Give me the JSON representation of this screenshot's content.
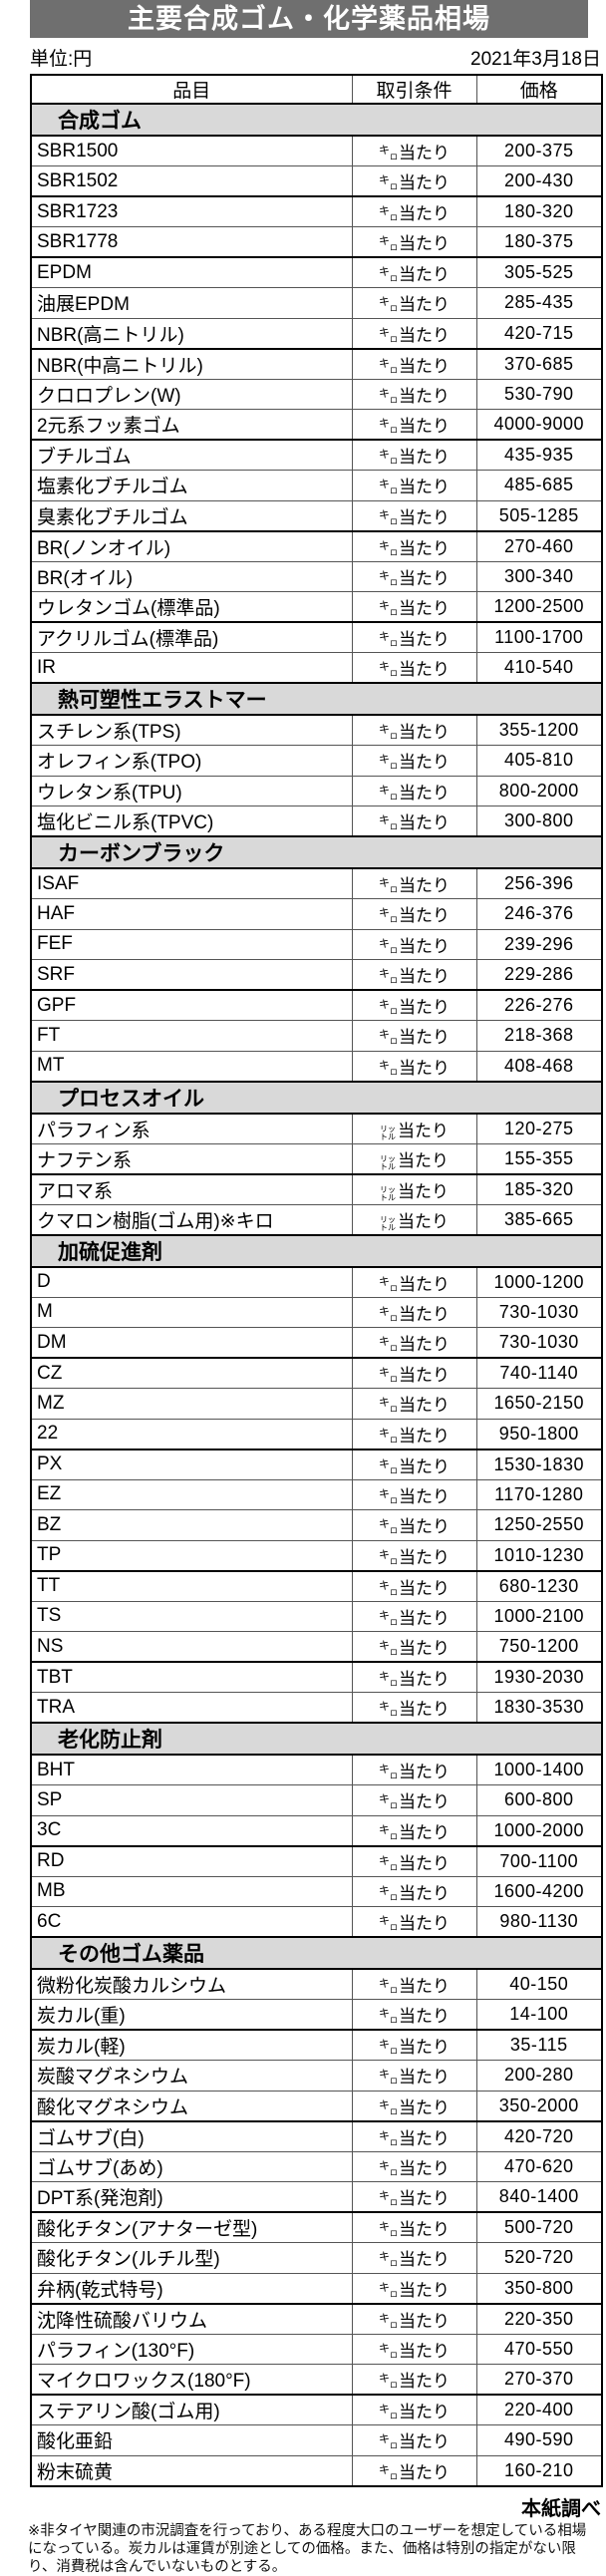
{
  "title": "主要合成ゴム・化学薬品相場",
  "unit_label": "単位:円",
  "date": "2021年3月18日",
  "columns": [
    "品目",
    "取引条件",
    "価格"
  ],
  "source": "本紙調べ",
  "footnote": "※非タイヤ関連の市況調査を行っており、ある程度大口のユーザーを想定している相場になっている。炭カルは運賃が別途としての価格。また、価格は特別の指定がない限り、消費税は含んでいないものとする。",
  "units": {
    "kilo": {
      "label": "㌔当たり",
      "top": "キ",
      "sub": "ロ",
      "suffix": "当たり"
    },
    "liter": {
      "label": "㍑当たり",
      "line1": "リッ",
      "line2": "トル",
      "suffix": "当たり"
    }
  },
  "colors": {
    "title_bar_bg": "#6f6f6f",
    "title_text": "#ffffff",
    "section_bg": "#d9d9d9",
    "border_thin": "#555555",
    "border_thick": "#000000"
  },
  "sections": [
    {
      "name": "合成ゴム",
      "rows": [
        {
          "item": "SBR1500",
          "cond": "kilo",
          "price": "200-375"
        },
        {
          "item": "SBR1502",
          "cond": "kilo",
          "price": "200-430"
        },
        {
          "item": "SBR1723",
          "cond": "kilo",
          "price": "180-320",
          "thick": true
        },
        {
          "item": "SBR1778",
          "cond": "kilo",
          "price": "180-375"
        },
        {
          "item": "EPDM",
          "cond": "kilo",
          "price": "305-525",
          "thick": true
        },
        {
          "item": "油展EPDM",
          "cond": "kilo",
          "price": "285-435"
        },
        {
          "item": "NBR(高ニトリル)",
          "cond": "kilo",
          "price": "420-715"
        },
        {
          "item": "NBR(中高ニトリル)",
          "cond": "kilo",
          "price": "370-685",
          "thick": true
        },
        {
          "item": "クロロプレン(W)",
          "cond": "kilo",
          "price": "530-790"
        },
        {
          "item": "2元系フッ素ゴム",
          "cond": "kilo",
          "price": "4000-9000"
        },
        {
          "item": "ブチルゴム",
          "cond": "kilo",
          "price": "435-935",
          "thick": true
        },
        {
          "item": "塩素化ブチルゴム",
          "cond": "kilo",
          "price": "485-685"
        },
        {
          "item": "臭素化ブチルゴム",
          "cond": "kilo",
          "price": "505-1285"
        },
        {
          "item": "BR(ノンオイル)",
          "cond": "kilo",
          "price": "270-460",
          "thick": true
        },
        {
          "item": "BR(オイル)",
          "cond": "kilo",
          "price": "300-340"
        },
        {
          "item": "ウレタンゴム(標準品)",
          "cond": "kilo",
          "price": "1200-2500"
        },
        {
          "item": "アクリルゴム(標準品)",
          "cond": "kilo",
          "price": "1100-1700",
          "thick": true
        },
        {
          "item": "IR",
          "cond": "kilo",
          "price": "410-540"
        }
      ]
    },
    {
      "name": "熱可塑性エラストマー",
      "rows": [
        {
          "item": "スチレン系(TPS)",
          "cond": "kilo",
          "price": "355-1200"
        },
        {
          "item": "オレフィン系(TPO)",
          "cond": "kilo",
          "price": "405-810"
        },
        {
          "item": "ウレタン系(TPU)",
          "cond": "kilo",
          "price": "800-2000"
        },
        {
          "item": "塩化ビニル系(TPVC)",
          "cond": "kilo",
          "price": "300-800"
        }
      ]
    },
    {
      "name": "カーボンブラック",
      "rows": [
        {
          "item": "ISAF",
          "cond": "kilo",
          "price": "256-396"
        },
        {
          "item": "HAF",
          "cond": "kilo",
          "price": "246-376"
        },
        {
          "item": "FEF",
          "cond": "kilo",
          "price": "239-296"
        },
        {
          "item": "SRF",
          "cond": "kilo",
          "price": "229-286"
        },
        {
          "item": "GPF",
          "cond": "kilo",
          "price": "226-276",
          "thick": true
        },
        {
          "item": "FT",
          "cond": "kilo",
          "price": "218-368"
        },
        {
          "item": "MT",
          "cond": "kilo",
          "price": "408-468"
        }
      ]
    },
    {
      "name": "プロセスオイル",
      "rows": [
        {
          "item": "パラフィン系",
          "cond": "liter",
          "price": "120-275"
        },
        {
          "item": "ナフテン系",
          "cond": "liter",
          "price": "155-355"
        },
        {
          "item": "アロマ系",
          "cond": "liter",
          "price": "185-320",
          "thick": true
        },
        {
          "item": "クマロン樹脂(ゴム用)※キロ",
          "cond": "liter",
          "price": "385-665"
        }
      ]
    },
    {
      "name": "加硫促進剤",
      "rows": [
        {
          "item": "D",
          "cond": "kilo",
          "price": "1000-1200"
        },
        {
          "item": "M",
          "cond": "kilo",
          "price": "730-1030"
        },
        {
          "item": "DM",
          "cond": "kilo",
          "price": "730-1030"
        },
        {
          "item": "CZ",
          "cond": "kilo",
          "price": "740-1140",
          "thick": true
        },
        {
          "item": "MZ",
          "cond": "kilo",
          "price": "1650-2150"
        },
        {
          "item": "22",
          "cond": "kilo",
          "price": "950-1800"
        },
        {
          "item": "PX",
          "cond": "kilo",
          "price": "1530-1830",
          "thick": true
        },
        {
          "item": "EZ",
          "cond": "kilo",
          "price": "1170-1280"
        },
        {
          "item": "BZ",
          "cond": "kilo",
          "price": "1250-2550"
        },
        {
          "item": "TP",
          "cond": "kilo",
          "price": "1010-1230"
        },
        {
          "item": "TT",
          "cond": "kilo",
          "price": "680-1230",
          "thick": true
        },
        {
          "item": "TS",
          "cond": "kilo",
          "price": "1000-2100"
        },
        {
          "item": "NS",
          "cond": "kilo",
          "price": "750-1200"
        },
        {
          "item": "TBT",
          "cond": "kilo",
          "price": "1930-2030",
          "thick": true
        },
        {
          "item": "TRA",
          "cond": "kilo",
          "price": "1830-3530"
        }
      ]
    },
    {
      "name": "老化防止剤",
      "rows": [
        {
          "item": "BHT",
          "cond": "kilo",
          "price": "1000-1400"
        },
        {
          "item": "SP",
          "cond": "kilo",
          "price": "600-800"
        },
        {
          "item": "3C",
          "cond": "kilo",
          "price": "1000-2000"
        },
        {
          "item": "RD",
          "cond": "kilo",
          "price": "700-1100",
          "thick": true
        },
        {
          "item": "MB",
          "cond": "kilo",
          "price": "1600-4200"
        },
        {
          "item": "6C",
          "cond": "kilo",
          "price": "980-1130"
        }
      ]
    },
    {
      "name": "その他ゴム薬品",
      "rows": [
        {
          "item": "微粉化炭酸カルシウム",
          "cond": "kilo",
          "price": "40-150"
        },
        {
          "item": "炭カル(重)",
          "cond": "kilo",
          "price": "14-100"
        },
        {
          "item": "炭カル(軽)",
          "cond": "kilo",
          "price": "35-115",
          "thick": true
        },
        {
          "item": "炭酸マグネシウム",
          "cond": "kilo",
          "price": "200-280"
        },
        {
          "item": "酸化マグネシウム",
          "cond": "kilo",
          "price": "350-2000"
        },
        {
          "item": "ゴムサブ(白)",
          "cond": "kilo",
          "price": "420-720",
          "thick": true
        },
        {
          "item": "ゴムサブ(あめ)",
          "cond": "kilo",
          "price": "470-620"
        },
        {
          "item": "DPT系(発泡剤)",
          "cond": "kilo",
          "price": "840-1400"
        },
        {
          "item": "酸化チタン(アナターゼ型)",
          "cond": "kilo",
          "price": "500-720",
          "thick": true
        },
        {
          "item": "酸化チタン(ルチル型)",
          "cond": "kilo",
          "price": "520-720"
        },
        {
          "item": "弁柄(乾式特号)",
          "cond": "kilo",
          "price": "350-800"
        },
        {
          "item": "沈降性硫酸バリウム",
          "cond": "kilo",
          "price": "220-350",
          "thick": true
        },
        {
          "item": "パラフィン(130°F)",
          "cond": "kilo",
          "price": "470-550"
        },
        {
          "item": "マイクロワックス(180°F)",
          "cond": "kilo",
          "price": "270-370"
        },
        {
          "item": "ステアリン酸(ゴム用)",
          "cond": "kilo",
          "price": "220-400",
          "thick": true
        },
        {
          "item": "酸化亜鉛",
          "cond": "kilo",
          "price": "490-590"
        },
        {
          "item": "粉末硫黄",
          "cond": "kilo",
          "price": "160-210"
        }
      ]
    }
  ]
}
